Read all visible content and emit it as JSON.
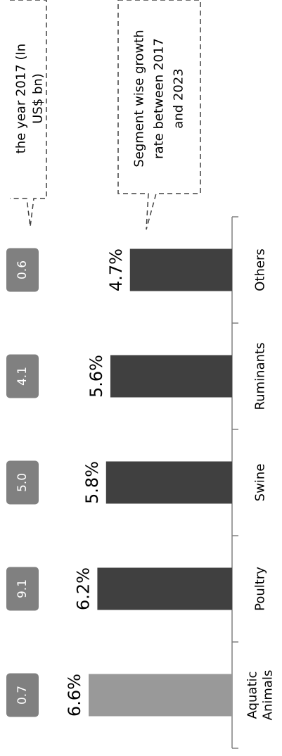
{
  "chart_data": {
    "type": "bar",
    "orientation": "horizontal",
    "categories": [
      "Aquatic Animals",
      "Poultry",
      "Swine",
      "Ruminants",
      "Others"
    ],
    "category_lines": [
      [
        "Aquatic",
        "Animals"
      ],
      [
        "Poultry"
      ],
      [
        "Swine"
      ],
      [
        "Ruminants"
      ],
      [
        "Others"
      ]
    ],
    "series": [
      {
        "values": [
          6.6,
          6.2,
          5.8,
          5.6,
          4.7
        ]
      }
    ],
    "value_labels": [
      "6.6%",
      "6.2%",
      "5.8%",
      "5.6%",
      "4.7%"
    ],
    "market_size_2017": [
      "0.7",
      "9.1",
      "5.0",
      "4.1",
      "0.6"
    ],
    "callouts": {
      "market_size_lines": [
        "the year 2017 (In",
        "US$ bn)"
      ],
      "growth_lines": [
        "Segment wise growth",
        "rate between 2017",
        "and 2023"
      ]
    },
    "colors": {
      "highlight_bar": "#999999",
      "bar": "#404040",
      "badge": "#808080",
      "badge_text": "#ffffff",
      "text": "#000000",
      "axis": "#808080",
      "callout_border": "#404040"
    }
  }
}
